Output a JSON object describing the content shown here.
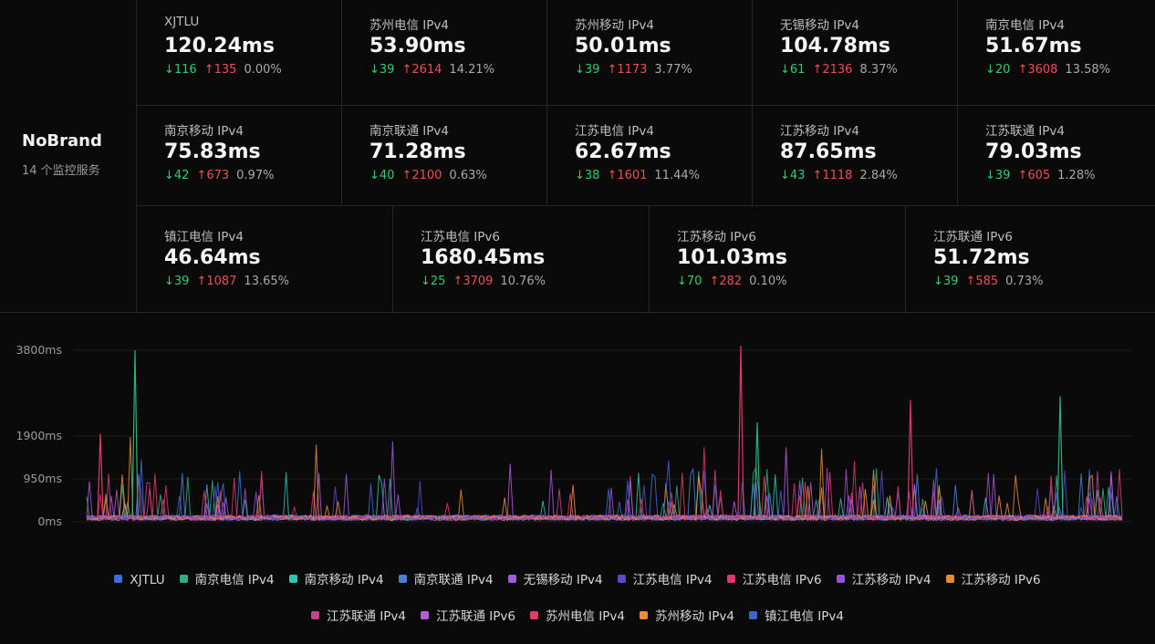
{
  "brand": {
    "name": "NoBrand",
    "subtitle": "14 个监控服务"
  },
  "services": [
    {
      "name": "XJTLU",
      "latency": "120.24ms",
      "down": "↓116",
      "up": "↑135",
      "loss": "0.00%"
    },
    {
      "name": "苏州电信 IPv4",
      "latency": "53.90ms",
      "down": "↓39",
      "up": "↑2614",
      "loss": "14.21%"
    },
    {
      "name": "苏州移动 IPv4",
      "latency": "50.01ms",
      "down": "↓39",
      "up": "↑1173",
      "loss": "3.77%"
    },
    {
      "name": "无锡移动 IPv4",
      "latency": "104.78ms",
      "down": "↓61",
      "up": "↑2136",
      "loss": "8.37%"
    },
    {
      "name": "南京电信 IPv4",
      "latency": "51.67ms",
      "down": "↓20",
      "up": "↑3608",
      "loss": "13.58%"
    },
    {
      "name": "南京移动 IPv4",
      "latency": "75.83ms",
      "down": "↓42",
      "up": "↑673",
      "loss": "0.97%"
    },
    {
      "name": "南京联通 IPv4",
      "latency": "71.28ms",
      "down": "↓40",
      "up": "↑2100",
      "loss": "0.63%"
    },
    {
      "name": "江苏电信 IPv4",
      "latency": "62.67ms",
      "down": "↓38",
      "up": "↑1601",
      "loss": "11.44%"
    },
    {
      "name": "江苏移动 IPv4",
      "latency": "87.65ms",
      "down": "↓43",
      "up": "↑1118",
      "loss": "2.84%"
    },
    {
      "name": "江苏联通 IPv4",
      "latency": "79.03ms",
      "down": "↓39",
      "up": "↑605",
      "loss": "1.28%"
    },
    {
      "name": "镇江电信 IPv4",
      "latency": "46.64ms",
      "down": "↓39",
      "up": "↑1087",
      "loss": "13.65%"
    },
    {
      "name": "江苏电信 IPv6",
      "latency": "1680.45ms",
      "down": "↓25",
      "up": "↑3709",
      "loss": "10.76%"
    },
    {
      "name": "江苏移动 IPv6",
      "latency": "101.03ms",
      "down": "↓70",
      "up": "↑282",
      "loss": "0.10%"
    },
    {
      "name": "江苏联通 IPv6",
      "latency": "51.72ms",
      "down": "↓39",
      "up": "↑585",
      "loss": "0.73%"
    }
  ],
  "colors": {
    "down": "#2ecc71",
    "up": "#ef4d56"
  },
  "chart_data": {
    "type": "line",
    "y_ticks": [
      "3800ms",
      "1900ms",
      "950ms",
      "0ms"
    ],
    "ylim": [
      0,
      3800
    ],
    "grid": true,
    "legend_position": "bottom",
    "series": [
      {
        "name": "XJTLU",
        "color": "#3b6fd8"
      },
      {
        "name": "南京电信 IPv4",
        "color": "#2bb07f"
      },
      {
        "name": "南京移动 IPv4",
        "color": "#2ec4b6"
      },
      {
        "name": "南京联通 IPv4",
        "color": "#4a7fd6"
      },
      {
        "name": "无锡移动 IPv4",
        "color": "#a05bd9"
      },
      {
        "name": "江苏电信 IPv4",
        "color": "#5b48c9"
      },
      {
        "name": "江苏电信 IPv6",
        "color": "#e0366d"
      },
      {
        "name": "江苏移动 IPv4",
        "color": "#9b4fd6"
      },
      {
        "name": "江苏移动 IPv6",
        "color": "#e8893a"
      },
      {
        "name": "江苏联通 IPv4",
        "color": "#c9418c"
      },
      {
        "name": "江苏联通 IPv6",
        "color": "#b45ae0"
      },
      {
        "name": "苏州电信 IPv4",
        "color": "#e23b68"
      },
      {
        "name": "苏州移动 IPv4",
        "color": "#f08a3c"
      },
      {
        "name": "镇江电信 IPv4",
        "color": "#3a66cc"
      }
    ]
  }
}
